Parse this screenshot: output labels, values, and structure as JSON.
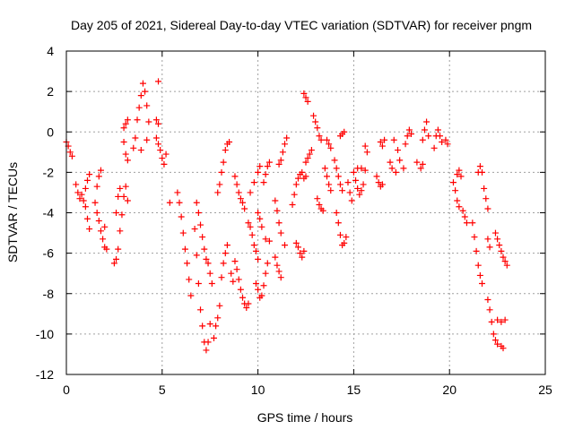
{
  "chart_data": {
    "type": "scatter",
    "title": "Day 205 of 2021, Sidereal Day-to-day VTEC variation (SDTVAR) for receiver pngm",
    "xlabel": "GPS time / hours",
    "ylabel": "SDTVAR / TECUs",
    "xlim": [
      0,
      25
    ],
    "ylim": [
      -12,
      4
    ],
    "xticks": [
      "0",
      "5",
      "10",
      "15",
      "20",
      "25"
    ],
    "yticks": [
      "-12",
      "-10",
      "-8",
      "-6",
      "-4",
      "-2",
      "0",
      "2",
      "4"
    ],
    "grid": true,
    "marker": "+",
    "color": "#ff0000",
    "series": [
      {
        "points": [
          [
            0.0,
            -0.5
          ],
          [
            0.1,
            -0.7
          ],
          [
            0.2,
            -1.0
          ],
          [
            0.3,
            -1.2
          ],
          [
            0.5,
            -2.6
          ],
          [
            0.6,
            -3.0
          ],
          [
            0.7,
            -3.3
          ],
          [
            0.8,
            -3.1
          ],
          [
            0.9,
            -3.4
          ],
          [
            1.0,
            -3.7
          ],
          [
            1.1,
            -4.3
          ],
          [
            1.2,
            -4.8
          ],
          [
            1.0,
            -2.8
          ],
          [
            1.1,
            -2.4
          ],
          [
            1.2,
            -2.1
          ],
          [
            1.5,
            -3.5
          ],
          [
            1.6,
            -4.0
          ],
          [
            1.7,
            -4.4
          ],
          [
            1.8,
            -4.9
          ],
          [
            1.9,
            -5.3
          ],
          [
            2.0,
            -5.7
          ],
          [
            2.1,
            -5.8
          ],
          [
            1.6,
            -2.7
          ],
          [
            1.7,
            -2.2
          ],
          [
            1.8,
            -1.9
          ],
          [
            2.0,
            -4.7
          ],
          [
            2.5,
            -6.5
          ],
          [
            2.6,
            -6.3
          ],
          [
            2.7,
            -5.8
          ],
          [
            2.8,
            -4.9
          ],
          [
            2.9,
            -4.1
          ],
          [
            3.0,
            -3.2
          ],
          [
            3.1,
            -2.7
          ],
          [
            3.2,
            -3.4
          ],
          [
            2.6,
            -4.0
          ],
          [
            2.7,
            -3.2
          ],
          [
            2.8,
            -2.8
          ],
          [
            3.0,
            0.2
          ],
          [
            3.1,
            0.4
          ],
          [
            3.2,
            0.6
          ],
          [
            3.0,
            -0.5
          ],
          [
            3.1,
            -1.1
          ],
          [
            3.2,
            -1.4
          ],
          [
            3.5,
            -0.8
          ],
          [
            3.6,
            -0.3
          ],
          [
            3.7,
            0.6
          ],
          [
            3.8,
            1.2
          ],
          [
            3.9,
            1.8
          ],
          [
            4.0,
            2.4
          ],
          [
            4.1,
            2.0
          ],
          [
            4.2,
            1.3
          ],
          [
            4.3,
            0.5
          ],
          [
            4.2,
            -0.4
          ],
          [
            3.9,
            -0.9
          ],
          [
            4.8,
            2.5
          ],
          [
            4.7,
            0.6
          ],
          [
            4.8,
            0.4
          ],
          [
            4.7,
            -0.3
          ],
          [
            4.8,
            -0.6
          ],
          [
            4.9,
            -0.9
          ],
          [
            5.0,
            -1.3
          ],
          [
            5.1,
            -1.6
          ],
          [
            5.2,
            -1.1
          ],
          [
            5.4,
            -3.5
          ],
          [
            5.8,
            -3.0
          ],
          [
            5.9,
            -3.5
          ],
          [
            6.0,
            -4.2
          ],
          [
            6.1,
            -5.0
          ],
          [
            6.2,
            -5.8
          ],
          [
            6.3,
            -6.5
          ],
          [
            6.4,
            -7.3
          ],
          [
            6.5,
            -8.1
          ],
          [
            6.7,
            -4.8
          ],
          [
            6.8,
            -6.1
          ],
          [
            6.9,
            -7.5
          ],
          [
            7.0,
            -8.8
          ],
          [
            7.1,
            -9.6
          ],
          [
            7.2,
            -10.4
          ],
          [
            7.3,
            -10.8
          ],
          [
            7.4,
            -10.4
          ],
          [
            7.5,
            -9.5
          ],
          [
            6.8,
            -3.5
          ],
          [
            6.9,
            -4.0
          ],
          [
            7.0,
            -4.6
          ],
          [
            7.1,
            -5.2
          ],
          [
            7.2,
            -5.8
          ],
          [
            7.3,
            -6.3
          ],
          [
            7.4,
            -6.5
          ],
          [
            7.5,
            -7.0
          ],
          [
            7.6,
            -7.5
          ],
          [
            7.7,
            -10.2
          ],
          [
            7.8,
            -9.6
          ],
          [
            7.9,
            -9.2
          ],
          [
            8.0,
            -8.6
          ],
          [
            8.1,
            -7.2
          ],
          [
            8.2,
            -6.5
          ],
          [
            8.3,
            -6.0
          ],
          [
            8.4,
            -5.6
          ],
          [
            7.9,
            -3.0
          ],
          [
            8.0,
            -2.6
          ],
          [
            8.1,
            -2.0
          ],
          [
            8.2,
            -1.5
          ],
          [
            8.3,
            -0.9
          ],
          [
            8.4,
            -0.6
          ],
          [
            8.5,
            -0.5
          ],
          [
            8.6,
            -7.0
          ],
          [
            8.7,
            -7.4
          ],
          [
            8.8,
            -2.2
          ],
          [
            8.9,
            -2.6
          ],
          [
            9.0,
            -3.0
          ],
          [
            9.1,
            -3.3
          ],
          [
            9.2,
            -3.5
          ],
          [
            9.3,
            -3.8
          ],
          [
            8.8,
            -6.4
          ],
          [
            8.9,
            -6.8
          ],
          [
            9.0,
            -7.3
          ],
          [
            9.1,
            -7.8
          ],
          [
            9.2,
            -8.2
          ],
          [
            9.3,
            -8.5
          ],
          [
            9.4,
            -8.7
          ],
          [
            9.5,
            -8.5
          ],
          [
            9.5,
            -4.5
          ],
          [
            9.6,
            -4.7
          ],
          [
            9.7,
            -5.1
          ],
          [
            9.8,
            -5.6
          ],
          [
            9.9,
            -5.9
          ],
          [
            10.0,
            -6.3
          ],
          [
            9.6,
            -3.0
          ],
          [
            9.8,
            -2.5
          ],
          [
            10.0,
            -2.0
          ],
          [
            10.1,
            -1.7
          ],
          [
            9.9,
            -7.5
          ],
          [
            10.0,
            -7.8
          ],
          [
            10.1,
            -8.2
          ],
          [
            10.2,
            -8.1
          ],
          [
            10.3,
            -7.6
          ],
          [
            10.4,
            -7.0
          ],
          [
            10.5,
            -6.5
          ],
          [
            10.0,
            -4.0
          ],
          [
            10.1,
            -4.3
          ],
          [
            10.2,
            -4.7
          ],
          [
            10.4,
            -5.3
          ],
          [
            10.6,
            -5.4
          ],
          [
            10.3,
            -2.5
          ],
          [
            10.4,
            -2.1
          ],
          [
            10.5,
            -1.7
          ],
          [
            10.6,
            -1.5
          ],
          [
            10.9,
            -6.2
          ],
          [
            11.0,
            -6.6
          ],
          [
            11.1,
            -6.9
          ],
          [
            11.2,
            -7.2
          ],
          [
            10.9,
            -3.4
          ],
          [
            11.0,
            -3.9
          ],
          [
            11.1,
            -4.5
          ],
          [
            11.2,
            -5.0
          ],
          [
            11.4,
            -5.6
          ],
          [
            11.1,
            -1.6
          ],
          [
            11.2,
            -1.4
          ],
          [
            11.3,
            -1.0
          ],
          [
            11.4,
            -0.6
          ],
          [
            11.5,
            -0.3
          ],
          [
            11.8,
            -3.6
          ],
          [
            11.9,
            -3.1
          ],
          [
            12.0,
            -2.6
          ],
          [
            12.1,
            -2.3
          ],
          [
            12.2,
            -2.1
          ],
          [
            12.0,
            -5.5
          ],
          [
            12.1,
            -5.7
          ],
          [
            12.2,
            -6.0
          ],
          [
            12.3,
            -6.2
          ],
          [
            12.4,
            -5.9
          ],
          [
            12.3,
            -2.0
          ],
          [
            12.4,
            -2.3
          ],
          [
            12.5,
            -2.2
          ],
          [
            12.5,
            -1.5
          ],
          [
            12.6,
            -1.3
          ],
          [
            12.7,
            -1.1
          ],
          [
            12.8,
            -0.9
          ],
          [
            12.4,
            1.9
          ],
          [
            12.5,
            1.7
          ],
          [
            12.6,
            1.5
          ],
          [
            12.9,
            0.8
          ],
          [
            13.0,
            0.5
          ],
          [
            13.1,
            0.2
          ],
          [
            13.2,
            -0.2
          ],
          [
            13.3,
            -0.4
          ],
          [
            13.1,
            -3.3
          ],
          [
            13.2,
            -3.6
          ],
          [
            13.3,
            -3.8
          ],
          [
            13.4,
            -3.9
          ],
          [
            13.6,
            -0.4
          ],
          [
            13.7,
            -0.6
          ],
          [
            13.8,
            -0.8
          ],
          [
            13.5,
            -1.8
          ],
          [
            13.6,
            -2.2
          ],
          [
            13.7,
            -2.6
          ],
          [
            13.8,
            -2.9
          ],
          [
            14.0,
            -1.4
          ],
          [
            14.1,
            -1.8
          ],
          [
            14.2,
            -2.2
          ],
          [
            14.3,
            -2.6
          ],
          [
            14.4,
            -2.9
          ],
          [
            14.1,
            -4.0
          ],
          [
            14.2,
            -4.5
          ],
          [
            14.3,
            -5.1
          ],
          [
            14.4,
            -5.6
          ],
          [
            14.5,
            -5.5
          ],
          [
            14.6,
            -5.2
          ],
          [
            14.3,
            -0.2
          ],
          [
            14.4,
            -0.1
          ],
          [
            14.5,
            0.0
          ],
          [
            14.7,
            -2.5
          ],
          [
            14.8,
            -3.0
          ],
          [
            14.9,
            -3.4
          ],
          [
            15.0,
            -2.0
          ],
          [
            15.1,
            -2.4
          ],
          [
            15.2,
            -2.8
          ],
          [
            15.3,
            -3.1
          ],
          [
            15.4,
            -2.9
          ],
          [
            15.5,
            -2.6
          ],
          [
            15.2,
            -1.8
          ],
          [
            15.4,
            -1.8
          ],
          [
            15.6,
            -1.9
          ],
          [
            15.6,
            -0.7
          ],
          [
            15.7,
            -1.0
          ],
          [
            16.2,
            -2.2
          ],
          [
            16.3,
            -2.5
          ],
          [
            16.4,
            -2.7
          ],
          [
            16.5,
            -2.6
          ],
          [
            16.4,
            -0.5
          ],
          [
            16.5,
            -0.7
          ],
          [
            16.6,
            -0.4
          ],
          [
            16.9,
            -1.5
          ],
          [
            17.0,
            -1.8
          ],
          [
            17.2,
            -2.0
          ],
          [
            17.1,
            -0.4
          ],
          [
            17.3,
            -0.9
          ],
          [
            17.4,
            -1.4
          ],
          [
            17.6,
            -1.8
          ],
          [
            17.7,
            -0.6
          ],
          [
            17.8,
            -0.2
          ],
          [
            17.9,
            0.1
          ],
          [
            18.0,
            -0.1
          ],
          [
            18.3,
            -1.5
          ],
          [
            18.5,
            -1.8
          ],
          [
            18.6,
            -1.6
          ],
          [
            18.6,
            -0.4
          ],
          [
            18.7,
            0.1
          ],
          [
            18.8,
            0.5
          ],
          [
            18.9,
            -0.2
          ],
          [
            19.2,
            -0.8
          ],
          [
            19.3,
            -0.2
          ],
          [
            19.4,
            0.1
          ],
          [
            19.5,
            -0.2
          ],
          [
            19.6,
            -0.5
          ],
          [
            19.9,
            -0.6
          ],
          [
            19.8,
            -0.4
          ],
          [
            20.2,
            -2.5
          ],
          [
            20.3,
            -2.9
          ],
          [
            20.4,
            -3.4
          ],
          [
            20.5,
            -3.7
          ],
          [
            20.4,
            -2.1
          ],
          [
            20.5,
            -1.9
          ],
          [
            20.6,
            -2.2
          ],
          [
            20.7,
            -3.9
          ],
          [
            20.8,
            -4.2
          ],
          [
            20.9,
            -4.5
          ],
          [
            21.2,
            -4.5
          ],
          [
            21.3,
            -5.2
          ],
          [
            21.4,
            -5.9
          ],
          [
            21.5,
            -6.6
          ],
          [
            21.6,
            -7.1
          ],
          [
            21.7,
            -7.5
          ],
          [
            21.5,
            -2.0
          ],
          [
            21.6,
            -1.7
          ],
          [
            21.7,
            -2.0
          ],
          [
            21.8,
            -2.8
          ],
          [
            21.9,
            -3.3
          ],
          [
            22.0,
            -3.8
          ],
          [
            22.0,
            -5.3
          ],
          [
            22.1,
            -5.7
          ],
          [
            22.0,
            -8.3
          ],
          [
            22.1,
            -8.8
          ],
          [
            22.2,
            -9.4
          ],
          [
            22.3,
            -10.0
          ],
          [
            22.4,
            -10.3
          ],
          [
            22.5,
            -10.5
          ],
          [
            22.7,
            -10.6
          ],
          [
            22.8,
            -10.7
          ],
          [
            22.4,
            -5.0
          ],
          [
            22.5,
            -5.3
          ],
          [
            22.6,
            -5.6
          ],
          [
            22.7,
            -5.9
          ],
          [
            22.8,
            -6.2
          ],
          [
            22.9,
            -6.4
          ],
          [
            23.0,
            -6.6
          ],
          [
            22.5,
            -9.3
          ],
          [
            22.7,
            -9.4
          ],
          [
            22.9,
            -9.3
          ]
        ]
      }
    ]
  }
}
